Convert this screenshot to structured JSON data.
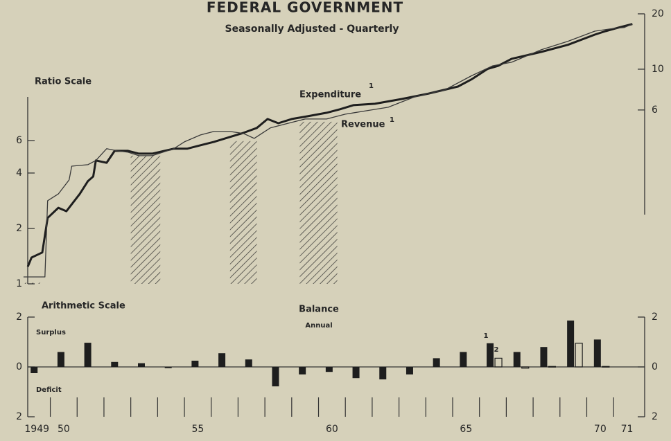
{
  "chart_data": [
    {
      "type": "line",
      "title": "FEDERAL GOVERNMENT",
      "subtitle": "Seasonally Adjusted - Quarterly",
      "axis_label": "Ratio Scale",
      "log_scale": true,
      "xlim": [
        1948.9,
        1971.9
      ],
      "ylim": [
        1,
        29.3
      ],
      "yticks": [
        1,
        2,
        4,
        6
      ],
      "y2lim": [
        0.68,
        20
      ],
      "y2ticks": [
        6,
        10,
        20
      ],
      "shaded_periods": [
        [
          1949.0,
          1949.8
        ],
        [
          1953.0,
          1954.1
        ],
        [
          1956.7,
          1957.7
        ],
        [
          1959.3,
          1960.7
        ]
      ],
      "series": [
        {
          "name": "Expenditure",
          "note": "1",
          "color": "#1e1e1e",
          "width": 3,
          "x": [
            1949.16,
            1949.3,
            1949.7,
            1949.9,
            1950.3,
            1950.6,
            1951.1,
            1951.4,
            1951.6,
            1951.7,
            1952.1,
            1952.4,
            1952.9,
            1953.3,
            1953.8,
            1954.6,
            1955.1,
            1955.6,
            1956.1,
            1956.7,
            1957.2,
            1957.7,
            1958.1,
            1958.5,
            1959.0,
            1959.6,
            1960.3,
            1960.8,
            1961.3,
            1962.1,
            1963.1,
            1964.1,
            1965.2,
            1965.7,
            1966.3,
            1966.7,
            1967.2,
            1968.3,
            1969.3,
            1970.3,
            1970.7,
            1971.2,
            1971.7
          ],
          "values": [
            1.24,
            1.39,
            1.48,
            2.28,
            2.59,
            2.48,
            3.08,
            3.61,
            3.83,
            4.68,
            4.55,
            5.28,
            5.28,
            5.1,
            5.1,
            5.42,
            5.42,
            5.66,
            5.91,
            6.28,
            6.61,
            7.03,
            7.86,
            7.46,
            7.86,
            8.14,
            8.5,
            8.88,
            9.35,
            9.51,
            10.1,
            10.8,
            11.8,
            12.9,
            14.7,
            15.3,
            16.7,
            18.2,
            19.9,
            22.6,
            23.6,
            24.7,
            25.8
          ]
        },
        {
          "name": "Revenue",
          "note": "1",
          "color": "#3a3a3a",
          "width": 1.3,
          "x": [
            1949.0,
            1949.8,
            1949.9,
            1950.3,
            1950.7,
            1950.8,
            1951.4,
            1951.7,
            1952.1,
            1952.5,
            1952.9,
            1953.3,
            1953.8,
            1954.6,
            1955.0,
            1955.6,
            1956.1,
            1956.7,
            1957.2,
            1957.6,
            1958.2,
            1958.7,
            1959.5,
            1960.3,
            1961.0,
            1961.8,
            1962.6,
            1963.6,
            1964.7,
            1965.7,
            1966.5,
            1967.2,
            1968.3,
            1969.3,
            1970.3,
            1970.9,
            1971.4,
            1971.7
          ],
          "values": [
            1.09,
            1.09,
            2.83,
            3.08,
            3.67,
            4.36,
            4.44,
            4.68,
            5.42,
            5.28,
            5.19,
            4.97,
            4.97,
            5.42,
            5.91,
            6.44,
            6.73,
            6.73,
            6.56,
            6.17,
            7.03,
            7.34,
            7.86,
            7.86,
            8.35,
            8.72,
            9.11,
            10.4,
            11.3,
            13.5,
            15.3,
            16.0,
            18.7,
            20.8,
            23.6,
            24.3,
            24.7,
            25.8
          ]
        }
      ]
    },
    {
      "type": "bar",
      "title": "Balance",
      "subtitle": "Annual",
      "axis_label": "Arithmetic Scale",
      "surplus_label": "Surplus",
      "deficit_label": "Deficit",
      "xlim": [
        1948.9,
        1971.9
      ],
      "xticks": [
        {
          "value": 1949,
          "label": "1949"
        },
        {
          "value": 1950,
          "label": "50"
        },
        {
          "value": 1955,
          "label": "55"
        },
        {
          "value": 1960,
          "label": "60"
        },
        {
          "value": 1965,
          "label": "65"
        },
        {
          "value": 1970,
          "label": "70"
        },
        {
          "value": 1971,
          "label": "71"
        }
      ],
      "xticks_minor": [
        1950,
        1951,
        1952,
        1953,
        1954,
        1955,
        1956,
        1957,
        1958,
        1959,
        1960,
        1961,
        1962,
        1963,
        1964,
        1965,
        1966,
        1967,
        1968,
        1969,
        1970,
        1971
      ],
      "ylim": [
        -2,
        2
      ],
      "yticks": [
        {
          "value": -2,
          "label": "2"
        },
        0,
        2
      ],
      "y2lim": [
        -2,
        2
      ],
      "y2ticks": [
        {
          "value": -2,
          "label": "2"
        },
        0,
        2
      ],
      "x": [
        1949,
        1950,
        1951,
        1952,
        1953,
        1954,
        1955,
        1956,
        1957,
        1958,
        1959,
        1960,
        1961,
        1962,
        1963,
        1964,
        1965,
        1966,
        1967,
        1968,
        1969,
        1970
      ],
      "series": [
        {
          "name": "1",
          "color": "#1e1e1e",
          "fill": true,
          "values": [
            -0.25,
            0.6,
            0.97,
            0.2,
            0.15,
            -0.05,
            0.25,
            0.55,
            0.3,
            -0.78,
            -0.3,
            -0.2,
            -0.45,
            -0.5,
            -0.3,
            0.35,
            0.6,
            0.95,
            0.6,
            0.8,
            1.86,
            1.1
          ]
        },
        {
          "name": "2",
          "color": "#1e1e1e",
          "fill": false,
          "values": [
            null,
            null,
            null,
            null,
            null,
            null,
            null,
            null,
            null,
            null,
            null,
            null,
            null,
            null,
            null,
            null,
            null,
            0.35,
            -0.05,
            0.02,
            0.95,
            0.02
          ]
        }
      ]
    }
  ]
}
